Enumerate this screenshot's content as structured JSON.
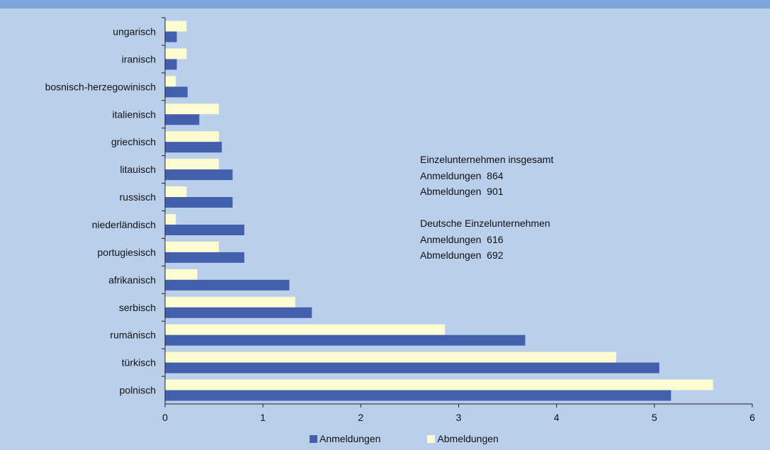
{
  "colors": {
    "background": "#b9cfeb",
    "top_band": "#7aa6dc",
    "anmeldungen": "#4360ad",
    "abmeldungen": "#fdfbd0",
    "axis": "#222222"
  },
  "info": {
    "block1_title": "Einzelunternehmen insgesamt",
    "block1_line1": "Anmeldungen  864",
    "block1_line2": "Abmeldungen  901",
    "block2_title": "Deutsche Einzelunternehmen",
    "block2_line1": "Anmeldungen  616",
    "block2_line2": "Abmeldungen  692"
  },
  "legend": {
    "anmeldungen": "Anmeldungen",
    "abmeldungen": "Abmeldungen"
  },
  "chart_data": {
    "type": "bar",
    "orientation": "horizontal",
    "categories": [
      "ungarisch",
      "iranisch",
      "bosnisch-herzegowinisch",
      "italienisch",
      "griechisch",
      "litauisch",
      "russisch",
      "niederländisch",
      "portugiesisch",
      "afrikanisch",
      "serbisch",
      "rumänisch",
      "türkisch",
      "polnisch"
    ],
    "series": [
      {
        "name": "Anmeldungen",
        "values": [
          0.12,
          0.12,
          0.23,
          0.35,
          0.58,
          0.69,
          0.69,
          0.81,
          0.81,
          1.27,
          1.5,
          3.68,
          5.05,
          5.17
        ]
      },
      {
        "name": "Abmeldungen",
        "values": [
          0.22,
          0.22,
          0.11,
          0.55,
          0.55,
          0.55,
          0.22,
          0.11,
          0.55,
          0.33,
          1.33,
          2.86,
          4.61,
          5.6
        ]
      }
    ],
    "xlim": [
      0,
      6
    ],
    "xticks": [
      "0",
      "1",
      "2",
      "3",
      "4",
      "5",
      "6"
    ],
    "grid": false,
    "legend_position": "bottom"
  }
}
